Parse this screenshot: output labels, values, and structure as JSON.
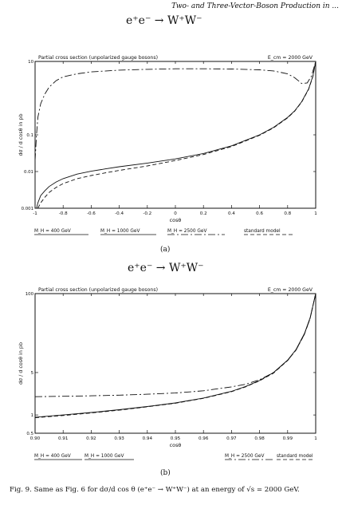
{
  "running_header": "Two- and Three-Vector-Boson Production in ...",
  "caption": "Fig. 9. Same as Fig. 6 for dσ/d cos θ (e⁺e⁻ → W⁺W⁻) at an energy of √s = 2000 GeV.",
  "line_styles": {
    "solid": "#111111",
    "dashed": "#111111",
    "dashdot": "#111111"
  },
  "chart_data": [
    {
      "panel_label": "(a)",
      "type": "line",
      "reaction": "e⁺e⁻ → W⁺W⁻",
      "title": "Partial cross section (unpolarized gauge bosons)",
      "energy_label": "E_cm = 2000 GeV",
      "xlabel": "cosθ",
      "ylabel": "dσ / d cosθ in pb",
      "xlim": [
        -1,
        1
      ],
      "ylim": [
        0.001,
        10
      ],
      "yscale": "log",
      "x_ticks": [
        -1,
        -0.8,
        -0.6,
        -0.4,
        -0.2,
        0,
        0.2,
        0.4,
        0.6,
        0.8,
        1
      ],
      "x_tick_labels": [
        "-1",
        "-0.8",
        "-0.6",
        "-0.4",
        "-0.2",
        "0",
        "0.2",
        "0.4",
        "0.6",
        "0.8",
        "1"
      ],
      "y_ticks": [
        0.001,
        0.01,
        0.1,
        10
      ],
      "y_tick_labels": [
        "0.001",
        "0.01",
        "0.1",
        "10"
      ],
      "legend": [
        {
          "label": "M_H = 400 GeV",
          "style": "solid"
        },
        {
          "label": "M_H = 1000 GeV",
          "style": "solid"
        },
        {
          "label": "M_H = 2500 GeV",
          "style": "dashdot"
        },
        {
          "label": "standard model",
          "style": "dashed"
        }
      ],
      "series": [
        {
          "style": "solid",
          "x": [
            -0.99,
            -0.98,
            -0.96,
            -0.93,
            -0.9,
            -0.85,
            -0.8,
            -0.7,
            -0.6,
            -0.5,
            -0.4,
            -0.2,
            0,
            0.2,
            0.4,
            0.6,
            0.7,
            0.8,
            0.85,
            0.9,
            0.95,
            0.98,
            1.0
          ],
          "y": [
            0.001,
            0.0014,
            0.0022,
            0.003,
            0.0039,
            0.0052,
            0.0064,
            0.0085,
            0.0102,
            0.0118,
            0.0135,
            0.017,
            0.022,
            0.031,
            0.05,
            0.1,
            0.16,
            0.3,
            0.45,
            0.8,
            1.8,
            4.0,
            10
          ]
        },
        {
          "style": "dashed",
          "x": [
            -0.98,
            -0.96,
            -0.93,
            -0.9,
            -0.85,
            -0.8,
            -0.7,
            -0.6,
            -0.5,
            -0.4,
            -0.2,
            0,
            0.2,
            0.4,
            0.6,
            0.7,
            0.8,
            0.85,
            0.9,
            0.95,
            0.98,
            1.0
          ],
          "y": [
            0.001,
            0.0014,
            0.002,
            0.0027,
            0.0037,
            0.0047,
            0.0064,
            0.0078,
            0.0092,
            0.0107,
            0.0142,
            0.02,
            0.029,
            0.048,
            0.097,
            0.155,
            0.29,
            0.44,
            0.78,
            1.75,
            3.9,
            10
          ]
        },
        {
          "style": "dashdot",
          "x": [
            -1.0,
            -0.99,
            -0.98,
            -0.96,
            -0.93,
            -0.9,
            -0.85,
            -0.8,
            -0.7,
            -0.6,
            -0.4,
            -0.2,
            0,
            0.2,
            0.4,
            0.6,
            0.7,
            0.8,
            0.85,
            0.88,
            0.9,
            0.94,
            0.97,
            1.0
          ],
          "y": [
            0.02,
            0.1,
            0.3,
            0.7,
            1.3,
            2.0,
            3.0,
            3.8,
            4.6,
            5.2,
            5.8,
            6.1,
            6.3,
            6.3,
            6.2,
            5.9,
            5.5,
            4.6,
            3.6,
            2.9,
            2.5,
            2.6,
            4.0,
            10
          ]
        }
      ]
    },
    {
      "panel_label": "(b)",
      "type": "line",
      "reaction": "e⁺e⁻ → W⁺W⁻",
      "title": "Partial cross section (unpolarized gauge bosons)",
      "energy_label": "E_cm = 2000 GeV",
      "xlabel": "cosθ",
      "ylabel": "dσ / d cosθ in pb",
      "xlim": [
        0.9,
        1.0
      ],
      "ylim": [
        0.5,
        100
      ],
      "yscale": "log",
      "x_ticks": [
        0.9,
        0.91,
        0.92,
        0.93,
        0.94,
        0.95,
        0.96,
        0.97,
        0.98,
        0.99,
        1.0
      ],
      "x_tick_labels": [
        "0.90",
        "0.91",
        "0.92",
        "0.93",
        "0.94",
        "0.95",
        "0.96",
        "0.97",
        "0.98",
        "0.99",
        "1"
      ],
      "y_ticks": [
        0.5,
        1,
        5,
        100
      ],
      "y_tick_labels": [
        "0.5",
        "1",
        "5",
        "100"
      ],
      "legend": [
        {
          "label": "M_H = 400 GeV",
          "style": "solid"
        },
        {
          "label": "M_H = 1000 GeV",
          "style": "solid"
        },
        {
          "label": "M_H = 2500 GeV",
          "style": "dashdot"
        },
        {
          "label": "standard model",
          "style": "dashed"
        }
      ],
      "series": [
        {
          "style": "solid",
          "x": [
            0.9,
            0.91,
            0.92,
            0.93,
            0.94,
            0.95,
            0.96,
            0.97,
            0.975,
            0.98,
            0.985,
            0.99,
            0.993,
            0.996,
            0.998,
            1.0
          ],
          "y": [
            0.92,
            1.0,
            1.1,
            1.22,
            1.38,
            1.58,
            1.9,
            2.45,
            2.95,
            3.7,
            5.0,
            8.0,
            12,
            22,
            40,
            100
          ]
        },
        {
          "style": "dashed",
          "x": [
            0.9,
            0.91,
            0.92,
            0.93,
            0.94,
            0.95,
            0.96,
            0.97,
            0.975,
            0.98,
            0.985,
            0.99,
            0.993,
            0.996,
            0.998,
            1.0
          ],
          "y": [
            0.9,
            0.98,
            1.08,
            1.2,
            1.36,
            1.56,
            1.88,
            2.42,
            2.9,
            3.65,
            4.9,
            7.9,
            11.8,
            21.5,
            39,
            100
          ]
        },
        {
          "style": "dashdot",
          "x": [
            0.9,
            0.91,
            0.92,
            0.93,
            0.94,
            0.95,
            0.96,
            0.97,
            0.975,
            0.98,
            0.985,
            0.99,
            0.993,
            0.996,
            0.998,
            1.0
          ],
          "y": [
            2.0,
            2.03,
            2.07,
            2.12,
            2.2,
            2.3,
            2.5,
            2.9,
            3.2,
            3.8,
            5.0,
            7.9,
            11.8,
            21.5,
            39,
            100
          ]
        }
      ]
    }
  ]
}
